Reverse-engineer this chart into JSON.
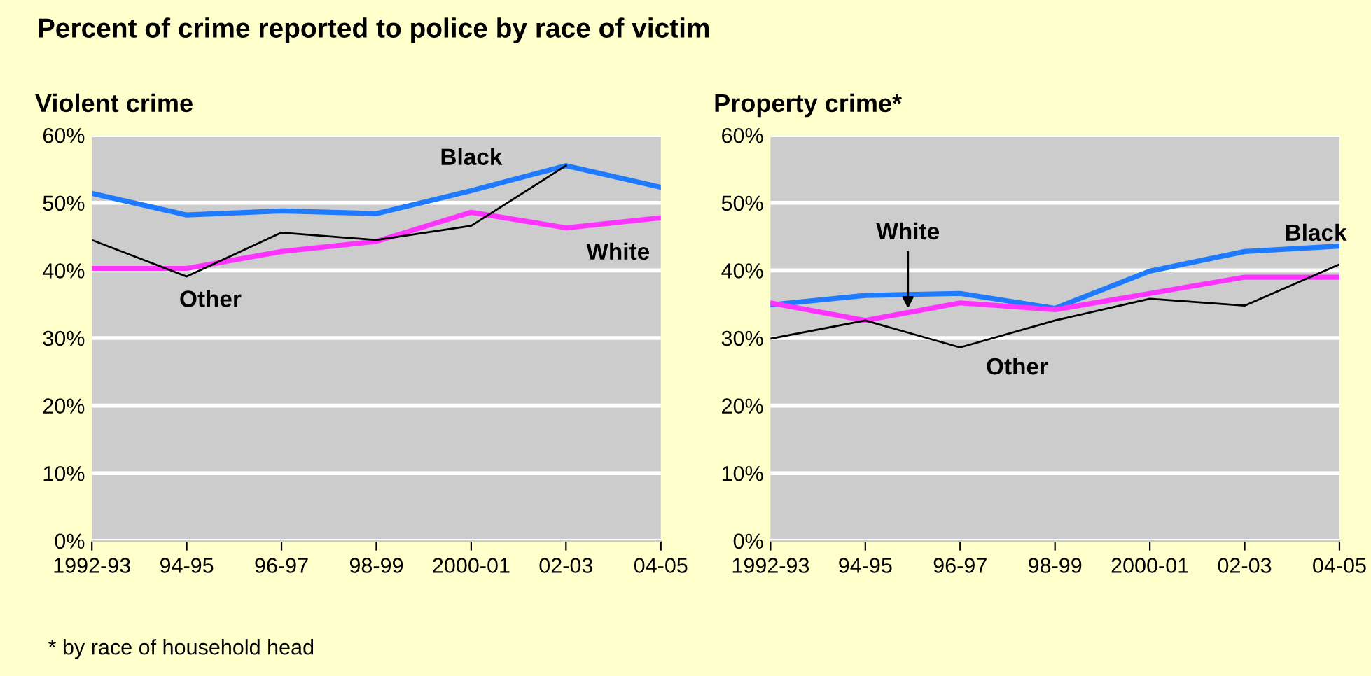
{
  "chart_data": [
    {
      "type": "line",
      "title": "Violent crime",
      "categories": [
        "1992-93",
        "94-95",
        "96-97",
        "98-99",
        "2000-01",
        "02-03",
        "04-05"
      ],
      "series": [
        {
          "name": "Black",
          "color": "#1e7bff",
          "values": [
            51.4,
            48.2,
            48.8,
            48.4,
            51.8,
            55.5,
            52.3
          ]
        },
        {
          "name": "White",
          "color": "#ff33ff",
          "values": [
            40.3,
            40.3,
            42.8,
            44.3,
            48.6,
            46.3,
            47.8
          ]
        },
        {
          "name": "Other",
          "color": "#000000",
          "values": [
            44.5,
            39.1,
            45.6,
            44.5,
            46.6,
            55.5,
            null
          ]
        }
      ],
      "ylim": [
        0,
        60
      ],
      "yticks": [
        {
          "value": 0,
          "label": "0%"
        },
        {
          "value": 10,
          "label": "10%"
        },
        {
          "value": 20,
          "label": "20%"
        },
        {
          "value": 30,
          "label": "30%"
        },
        {
          "value": 40,
          "label": "40%"
        },
        {
          "value": 50,
          "label": "50%"
        },
        {
          "value": 60,
          "label": "60%"
        }
      ],
      "grid": "y",
      "legend": false,
      "annotations": [
        "Percent of crime reported to police by race of victim",
        "* by race of household head"
      ]
    },
    {
      "type": "line",
      "title": "Property crime*",
      "categories": [
        "1992-93",
        "94-95",
        "96-97",
        "98-99",
        "2000-01",
        "02-03",
        "04-05"
      ],
      "series": [
        {
          "name": "Black",
          "color": "#1e7bff",
          "values": [
            34.9,
            36.3,
            36.6,
            34.4,
            39.9,
            42.8,
            43.6
          ]
        },
        {
          "name": "White",
          "color": "#ff33ff",
          "values": [
            35.2,
            32.6,
            35.2,
            34.2,
            36.6,
            39.0,
            39.0
          ]
        },
        {
          "name": "Other",
          "color": "#000000",
          "values": [
            29.9,
            32.6,
            28.6,
            32.6,
            35.8,
            34.8,
            40.9
          ]
        }
      ],
      "ylim": [
        0,
        60
      ],
      "yticks": [
        {
          "value": 0,
          "label": "0%"
        },
        {
          "value": 10,
          "label": "10%"
        },
        {
          "value": 20,
          "label": "20%"
        },
        {
          "value": 30,
          "label": "30%"
        },
        {
          "value": 40,
          "label": "40%"
        },
        {
          "value": 50,
          "label": "50%"
        },
        {
          "value": 60,
          "label": "60%"
        }
      ],
      "grid": "y",
      "legend": false
    }
  ]
}
